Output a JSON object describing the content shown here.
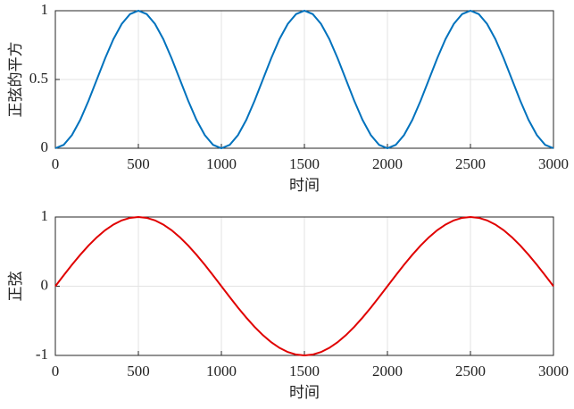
{
  "chart_data": [
    {
      "type": "line",
      "xlabel": "时间",
      "ylabel": "正弦的平方",
      "x": [
        0,
        50,
        100,
        150,
        200,
        250,
        300,
        350,
        400,
        450,
        500,
        550,
        600,
        650,
        700,
        750,
        800,
        850,
        900,
        950,
        1000,
        1050,
        1100,
        1150,
        1200,
        1250,
        1300,
        1350,
        1400,
        1450,
        1500,
        1550,
        1600,
        1650,
        1700,
        1750,
        1800,
        1850,
        1900,
        1950,
        2000,
        2050,
        2100,
        2150,
        2200,
        2250,
        2300,
        2350,
        2400,
        2450,
        2500,
        2550,
        2600,
        2650,
        2700,
        2750,
        2800,
        2850,
        2900,
        2950,
        3000
      ],
      "series": [
        {
          "color": "#0072bd",
          "values": [
            0,
            0.0245,
            0.0955,
            0.2061,
            0.3455,
            0.5,
            0.6545,
            0.7939,
            0.9045,
            0.9755,
            1,
            0.9755,
            0.9045,
            0.7939,
            0.6545,
            0.5,
            0.3455,
            0.2061,
            0.0955,
            0.0245,
            0,
            0.0245,
            0.0955,
            0.2061,
            0.3455,
            0.5,
            0.6545,
            0.7939,
            0.9045,
            0.9755,
            1,
            0.9755,
            0.9045,
            0.7939,
            0.6545,
            0.5,
            0.3455,
            0.2061,
            0.0955,
            0.0245,
            0,
            0.0245,
            0.0955,
            0.2061,
            0.3455,
            0.5,
            0.6545,
            0.7939,
            0.9045,
            0.9755,
            1,
            0.9755,
            0.9045,
            0.7939,
            0.6545,
            0.5,
            0.3455,
            0.2061,
            0.0955,
            0.0245,
            0
          ]
        }
      ],
      "xlim": [
        0,
        3000
      ],
      "xticks": [
        0,
        500,
        1000,
        1500,
        2000,
        2500,
        3000
      ],
      "ylim": [
        0,
        1
      ],
      "yticks": [
        0,
        0.5,
        1
      ],
      "grid": true
    },
    {
      "type": "line",
      "xlabel": "时间",
      "ylabel": "正弦",
      "x": [
        0,
        50,
        100,
        150,
        200,
        250,
        300,
        350,
        400,
        450,
        500,
        550,
        600,
        650,
        700,
        750,
        800,
        850,
        900,
        950,
        1000,
        1050,
        1100,
        1150,
        1200,
        1250,
        1300,
        1350,
        1400,
        1450,
        1500,
        1550,
        1600,
        1650,
        1700,
        1750,
        1800,
        1850,
        1900,
        1950,
        2000,
        2050,
        2100,
        2150,
        2200,
        2250,
        2300,
        2350,
        2400,
        2450,
        2500,
        2550,
        2600,
        2650,
        2700,
        2750,
        2800,
        2850,
        2900,
        2950,
        3000
      ],
      "series": [
        {
          "color": "#e00000",
          "values": [
            0,
            0.1564,
            0.309,
            0.454,
            0.5878,
            0.7071,
            0.809,
            0.891,
            0.9511,
            0.9877,
            1,
            0.9877,
            0.9511,
            0.891,
            0.809,
            0.7071,
            0.5878,
            0.454,
            0.309,
            0.1564,
            0,
            -0.1564,
            -0.309,
            -0.454,
            -0.5878,
            -0.7071,
            -0.809,
            -0.891,
            -0.9511,
            -0.9877,
            -1,
            -0.9877,
            -0.9511,
            -0.891,
            -0.809,
            -0.7071,
            -0.5878,
            -0.454,
            -0.309,
            -0.1564,
            0,
            0.1564,
            0.309,
            0.454,
            0.5878,
            0.7071,
            0.809,
            0.891,
            0.9511,
            0.9877,
            1,
            0.9877,
            0.9511,
            0.891,
            0.809,
            0.7071,
            0.5878,
            0.454,
            0.309,
            0.1564,
            0
          ]
        }
      ],
      "xlim": [
        0,
        3000
      ],
      "xticks": [
        0,
        500,
        1000,
        1500,
        2000,
        2500,
        3000
      ],
      "ylim": [
        -1,
        1
      ],
      "yticks": [
        -1,
        0,
        1
      ],
      "grid": true
    }
  ]
}
